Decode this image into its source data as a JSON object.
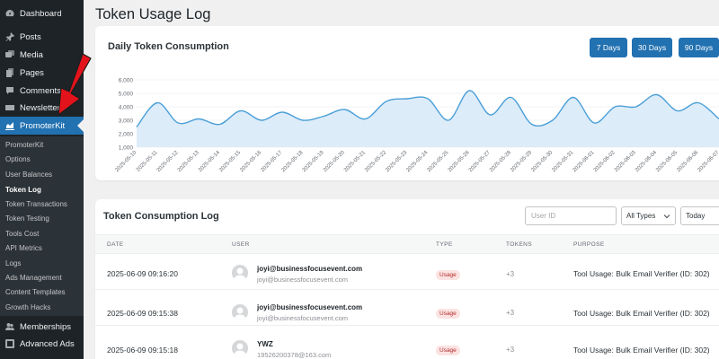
{
  "sidebar": {
    "top_items": [
      {
        "label": "Dashboard",
        "icon": "dashboard-icon"
      },
      {
        "label": "Posts",
        "icon": "pin-icon"
      },
      {
        "label": "Media",
        "icon": "media-icon"
      },
      {
        "label": "Pages",
        "icon": "pages-icon"
      },
      {
        "label": "Comments",
        "icon": "comments-icon"
      },
      {
        "label": "Newsletter",
        "icon": "newsletter-icon"
      },
      {
        "label": "PromoterKit",
        "icon": "chart-icon"
      }
    ],
    "submenu": [
      "PromoterKit",
      "Options",
      "User Balances",
      "Token Log",
      "Token Transactions",
      "Token Testing",
      "Tools Cost",
      "API Metrics",
      "Logs",
      "Ads Management",
      "Content Templates",
      "Growth Hacks"
    ],
    "bottom_items": [
      {
        "label": "Memberships",
        "icon": "memberships-icon"
      },
      {
        "label": "Advanced Ads",
        "icon": "ads-icon"
      }
    ]
  },
  "page": {
    "title": "Token Usage Log"
  },
  "chart_card": {
    "title": "Daily Token Consumption",
    "ranges": [
      "7 Days",
      "30 Days",
      "90 Days"
    ]
  },
  "chart_data": {
    "type": "area",
    "ylim": [
      1000,
      6000
    ],
    "y_ticks": [
      "1,000",
      "2,000",
      "3,000",
      "4,000",
      "5,000",
      "6,000"
    ],
    "x": [
      "2025-05-10",
      "2025-05-11",
      "2025-05-12",
      "2025-05-13",
      "2025-05-14",
      "2025-05-15",
      "2025-05-16",
      "2025-05-17",
      "2025-05-18",
      "2025-05-19",
      "2025-05-20",
      "2025-05-21",
      "2025-05-22",
      "2025-05-23",
      "2025-05-24",
      "2025-05-25",
      "2025-05-26",
      "2025-05-27",
      "2025-05-28",
      "2025-05-29",
      "2025-05-30",
      "2025-05-31",
      "2025-06-01",
      "2025-06-02",
      "2025-06-03",
      "2025-06-04",
      "2025-06-05",
      "2025-06-06",
      "2025-06-07"
    ],
    "values": [
      2500,
      4300,
      2800,
      3100,
      2700,
      3700,
      3000,
      3600,
      3000,
      3300,
      3800,
      3100,
      4400,
      4600,
      4600,
      3000,
      5200,
      3400,
      4700,
      2700,
      3000,
      4700,
      2800,
      4000,
      4000,
      4900,
      3700,
      4300,
      3100
    ],
    "grid": true,
    "color": "#4a9fd8",
    "fill": "#d7e9f8"
  },
  "log_card": {
    "title": "Token Consumption Log",
    "user_id_placeholder": "User ID",
    "type_filter": "All Types",
    "date_filter": "Today",
    "columns": [
      "DATE",
      "USER",
      "TYPE",
      "TOKENS",
      "PURPOSE"
    ],
    "rows": [
      {
        "date": "2025-06-09 09:16:20",
        "name": "joyi@businessfocusevent.com",
        "email": "joyi@businessfocusevent.com",
        "type": "Usage",
        "tokens": "+3",
        "purpose": "Tool Usage: Bulk Email Verifier (ID: 302)"
      },
      {
        "date": "2025-06-09 09:15:38",
        "name": "joyi@businessfocusevent.com",
        "email": "joyi@businessfocusevent.com",
        "type": "Usage",
        "tokens": "+3",
        "purpose": "Tool Usage: Bulk Email Verifier (ID: 302)"
      },
      {
        "date": "2025-06-09 09:15:18",
        "name": "YWZ",
        "email": "19526200378@163.com",
        "type": "Usage",
        "tokens": "+3",
        "purpose": "Tool Usage: Bulk Email Verifier (ID: 302)"
      }
    ]
  },
  "colors": {
    "sidebar_bg": "#1d2327",
    "accent": "#2271b1",
    "badge_bg": "#fbe3e1",
    "badge_text": "#b32d2e",
    "arrow": "#e3131b"
  }
}
